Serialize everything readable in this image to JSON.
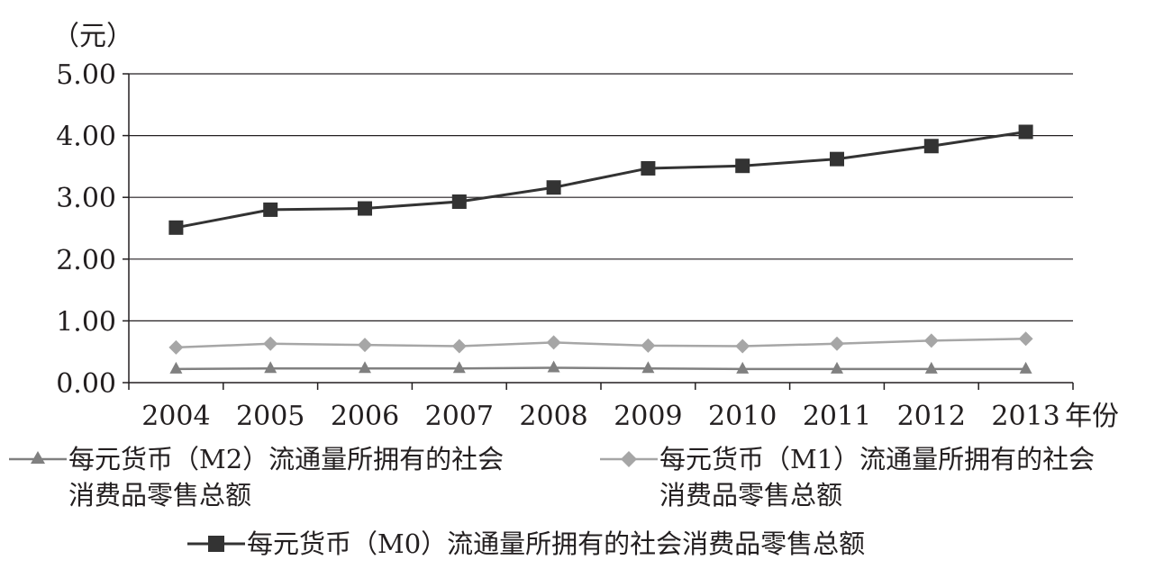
{
  "chart_data": {
    "type": "line",
    "categories": [
      "2004",
      "2005",
      "2006",
      "2007",
      "2008",
      "2009",
      "2010",
      "2011",
      "2012",
      "2013"
    ],
    "y_unit": "（元）",
    "x_unit": "年份",
    "ylim": [
      0,
      5
    ],
    "y_ticks": [
      "0.00",
      "1.00",
      "2.00",
      "3.00",
      "4.00",
      "5.00"
    ],
    "grid": true,
    "legend_position": "bottom",
    "series": [
      {
        "name": "每元货币（M2）流通量所拥有的社会消费品零售总额",
        "legend_lines": [
          "每元货币（M2）流通量所拥有的社会",
          "消费品零售总额"
        ],
        "marker": "triangle",
        "color": "#808080",
        "values": [
          0.22,
          0.23,
          0.23,
          0.23,
          0.24,
          0.23,
          0.22,
          0.22,
          0.22,
          0.22
        ]
      },
      {
        "name": "每元货币（M1）流通量所拥有的社会消费品零售总额",
        "legend_lines": [
          "每元货币（M1）流通量所拥有的社会",
          "消费品零售总额"
        ],
        "marker": "diamond",
        "color": "#a6a6a6",
        "values": [
          0.57,
          0.63,
          0.61,
          0.59,
          0.65,
          0.6,
          0.59,
          0.63,
          0.68,
          0.71
        ]
      },
      {
        "name": "每元货币（M0）流通量所拥有的社会消费品零售总额",
        "legend_lines": [
          "每元货币（M0）流通量所拥有的社会消费品零售总额"
        ],
        "marker": "square",
        "color": "#333333",
        "values": [
          2.51,
          2.8,
          2.82,
          2.93,
          3.16,
          3.47,
          3.51,
          3.62,
          3.83,
          4.06
        ]
      }
    ]
  }
}
